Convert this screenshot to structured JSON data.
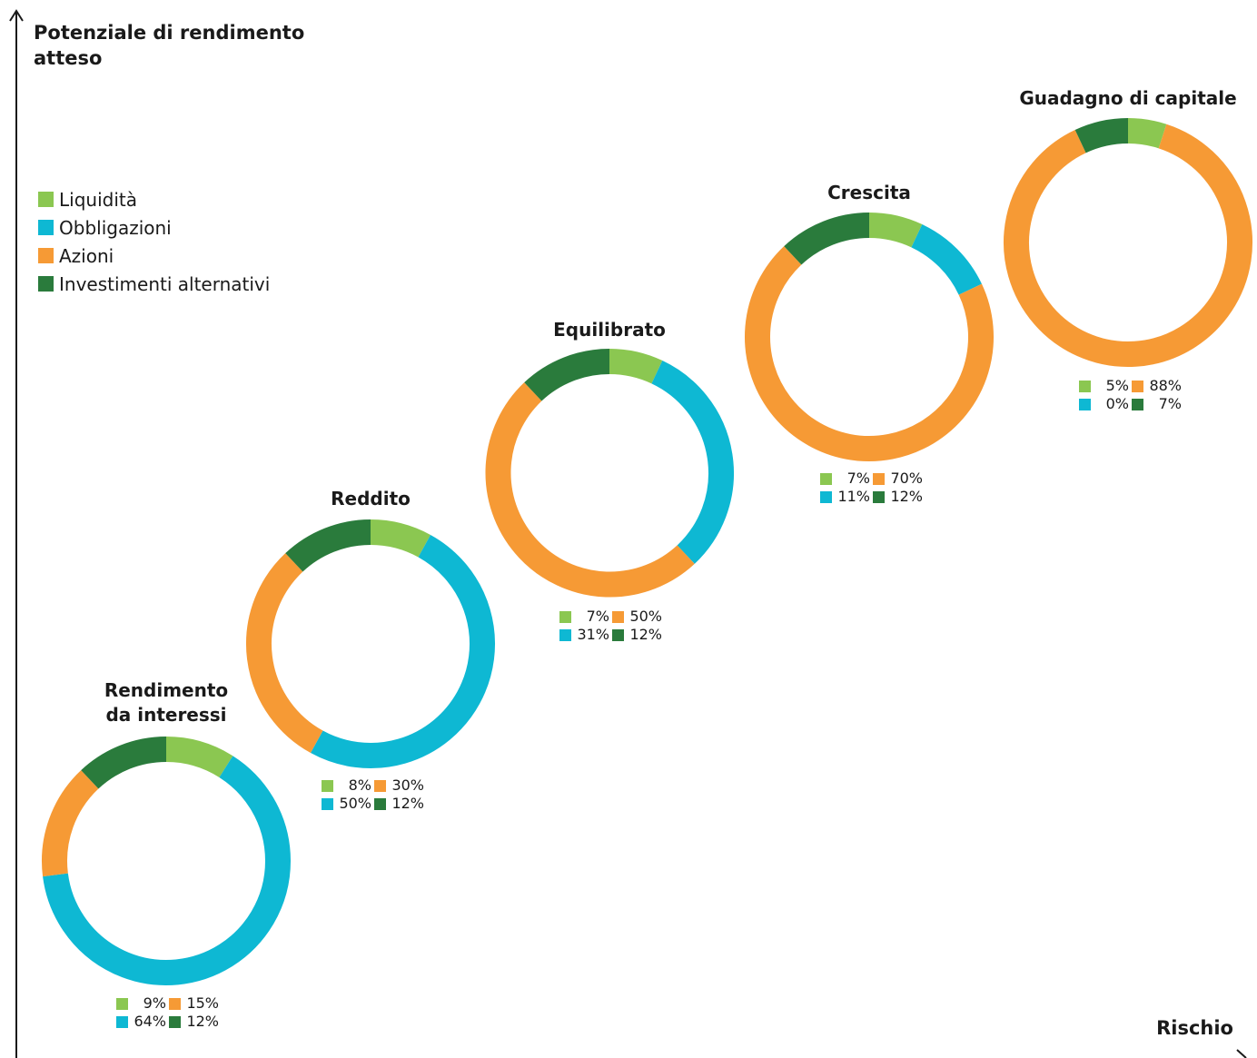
{
  "chart_data": {
    "type": "pie",
    "variant": "donut-series",
    "ylabel": "Potenziale di rendimento atteso",
    "xlabel": "Rischio",
    "legend_position": "top-left",
    "colors": {
      "Liquidità": "#8BC751",
      "Obbligazioni": "#0EB8D3",
      "Azioni": "#F69A35",
      "Investimenti alternativi": "#2A7B3C"
    },
    "legend": [
      "Liquidità",
      "Obbligazioni",
      "Azioni",
      "Investimenti alternativi"
    ],
    "portfolios": [
      {
        "name": "Rendimento da interessi",
        "title_lines": [
          "Rendimento",
          "da interessi"
        ],
        "slices": [
          {
            "category": "Liquidità",
            "value": 9,
            "label": "9%"
          },
          {
            "category": "Obbligazioni",
            "value": 64,
            "label": "64%"
          },
          {
            "category": "Azioni",
            "value": 15,
            "label": "15%"
          },
          {
            "category": "Investimenti alternativi",
            "value": 12,
            "label": "12%"
          }
        ]
      },
      {
        "name": "Reddito",
        "title_lines": [
          "Reddito"
        ],
        "slices": [
          {
            "category": "Liquidità",
            "value": 8,
            "label": "8%"
          },
          {
            "category": "Obbligazioni",
            "value": 50,
            "label": "50%"
          },
          {
            "category": "Azioni",
            "value": 30,
            "label": "30%"
          },
          {
            "category": "Investimenti alternativi",
            "value": 12,
            "label": "12%"
          }
        ]
      },
      {
        "name": "Equilibrato",
        "title_lines": [
          "Equilibrato"
        ],
        "slices": [
          {
            "category": "Liquidità",
            "value": 7,
            "label": "7%"
          },
          {
            "category": "Obbligazioni",
            "value": 31,
            "label": "31%"
          },
          {
            "category": "Azioni",
            "value": 50,
            "label": "50%"
          },
          {
            "category": "Investimenti alternativi",
            "value": 12,
            "label": "12%"
          }
        ]
      },
      {
        "name": "Crescita",
        "title_lines": [
          "Crescita"
        ],
        "slices": [
          {
            "category": "Liquidità",
            "value": 7,
            "label": "7%"
          },
          {
            "category": "Obbligazioni",
            "value": 11,
            "label": "11%"
          },
          {
            "category": "Azioni",
            "value": 70,
            "label": "70%"
          },
          {
            "category": "Investimenti alternativi",
            "value": 12,
            "label": "12%"
          }
        ]
      },
      {
        "name": "Guadagno di capitale",
        "title_lines": [
          "Guadagno di capitale"
        ],
        "slices": [
          {
            "category": "Liquidità",
            "value": 5,
            "label": "5%"
          },
          {
            "category": "Obbligazioni",
            "value": 0,
            "label": "0%"
          },
          {
            "category": "Azioni",
            "value": 88,
            "label": "88%"
          },
          {
            "category": "Investimenti alternativi",
            "value": 7,
            "label": "7%"
          }
        ]
      }
    ]
  }
}
